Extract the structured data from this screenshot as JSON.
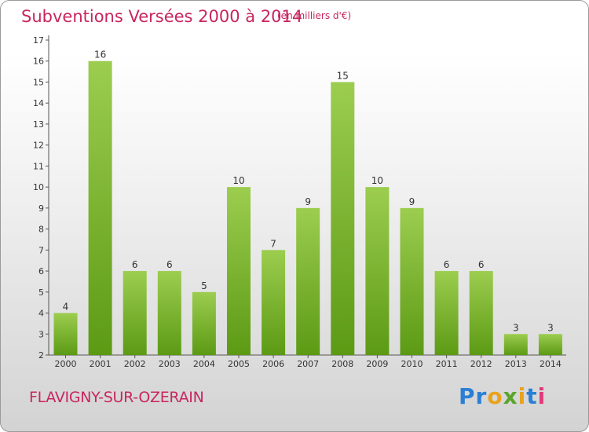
{
  "title": "Subventions Versées 2000 à 2014",
  "unit": "(en milliers d'€)",
  "commune": "FLAVIGNY-SUR-OZERAIN",
  "logo": {
    "text": "Proxiti",
    "letter_colors": [
      "#2a7fd4",
      "#2a7fd4",
      "#e8a21c",
      "#5aa52a",
      "#e8a21c",
      "#2a7fd4",
      "#e03a7a"
    ]
  },
  "colors": {
    "bar_light": "#9ccd4f",
    "bar_dark": "#5c9a14",
    "title": "#c8265f",
    "axis": "#555555"
  },
  "chart_data": {
    "type": "bar",
    "title": "Subventions Versées 2000 à 2014",
    "categories": [
      "2000",
      "2001",
      "2002",
      "2003",
      "2004",
      "2005",
      "2006",
      "2007",
      "2008",
      "2009",
      "2010",
      "2011",
      "2012",
      "2013",
      "2014"
    ],
    "values": [
      4,
      16,
      6,
      6,
      5,
      10,
      7,
      9,
      15,
      10,
      9,
      6,
      6,
      3,
      3
    ],
    "ylim": [
      2,
      17
    ],
    "yticks": [
      2,
      3,
      4,
      5,
      6,
      7,
      8,
      9,
      10,
      11,
      12,
      13,
      14,
      15,
      16,
      17
    ],
    "xlabel": "",
    "ylabel": "",
    "grid": false,
    "data_labels": true
  }
}
